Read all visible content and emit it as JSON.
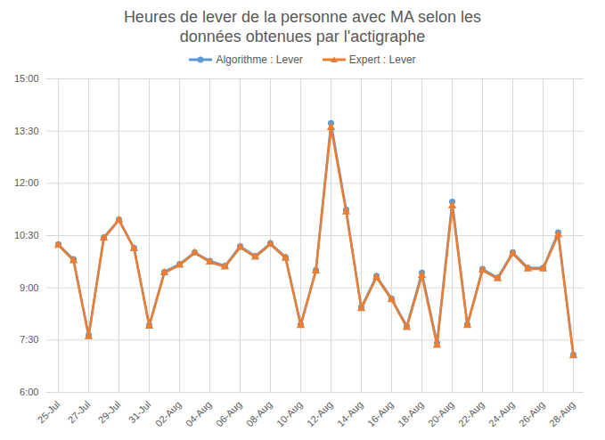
{
  "chart_data": {
    "type": "line",
    "title": "Heures de lever de la personne avec MA selon les données obtenues par l'actigraphe",
    "categories": [
      "25-Jul",
      null,
      "27-Jul",
      null,
      "29-Jul",
      null,
      "31-Jul",
      null,
      "02-Aug",
      null,
      "04-Aug",
      null,
      "06-Aug",
      null,
      "08-Aug",
      null,
      "10-Aug",
      null,
      "12-Aug",
      null,
      "14-Aug",
      null,
      "16-Aug",
      null,
      "18-Aug",
      null,
      "20-Aug",
      null,
      "22-Aug",
      null,
      "24-Aug",
      null,
      "26-Aug",
      null,
      "28-Aug"
    ],
    "series": [
      {
        "name": "Algorithme : Lever",
        "color": "#5B9BD5",
        "marker": "circle",
        "line_style": "solid",
        "values": [
          10.25,
          9.82,
          7.64,
          10.45,
          10.96,
          10.14,
          7.93,
          9.46,
          9.68,
          10.02,
          9.77,
          9.63,
          10.19,
          9.91,
          10.28,
          9.88,
          7.95,
          9.51,
          13.73,
          11.24,
          8.44,
          9.34,
          8.69,
          7.9,
          9.43,
          7.42,
          11.47,
          7.95,
          9.54,
          9.29,
          10.02,
          9.57,
          9.57,
          10.59,
          7.08
        ]
      },
      {
        "name": "Expert : Lever",
        "color": "#ED7D31",
        "marker": "triangle",
        "line_style": "solid",
        "values": [
          10.22,
          9.78,
          7.6,
          10.42,
          10.94,
          10.12,
          7.9,
          9.43,
          9.65,
          10.0,
          9.74,
          9.6,
          10.16,
          9.88,
          10.25,
          9.85,
          7.92,
          9.48,
          13.6,
          11.18,
          8.4,
          9.3,
          8.66,
          7.86,
          9.35,
          7.35,
          11.35,
          7.92,
          9.5,
          9.26,
          9.98,
          9.54,
          9.54,
          10.52,
          7.05
        ]
      }
    ],
    "ylim": [
      6,
      15
    ],
    "yticks": [
      {
        "value": 6,
        "label": "6:00"
      },
      {
        "value": 7.5,
        "label": "7:30"
      },
      {
        "value": 9,
        "label": "9:00"
      },
      {
        "value": 10.5,
        "label": "10:30"
      },
      {
        "value": 12,
        "label": "12:00"
      },
      {
        "value": 13.5,
        "label": "13:30"
      },
      {
        "value": 15,
        "label": "15:00"
      }
    ],
    "grid": true,
    "legend": "top"
  }
}
